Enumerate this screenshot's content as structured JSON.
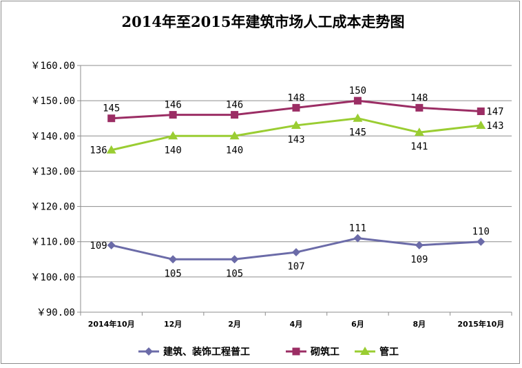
{
  "chart_data": {
    "type": "line",
    "title": "2014年至2015年建筑市场人工成本走势图",
    "categories": [
      "2014年10月",
      "12月",
      "2月",
      "4月",
      "6月",
      "8月",
      "2015年10月"
    ],
    "y_ticks": [
      "￥90.00",
      "￥100.00",
      "￥110.00",
      "￥120.00",
      "￥130.00",
      "￥140.00",
      "￥150.00",
      "￥160.00"
    ],
    "ylim": [
      90,
      160
    ],
    "grid": true,
    "legend_position": "bottom",
    "series": [
      {
        "name": "建筑、装饰工程普工",
        "values": [
          109,
          105,
          105,
          107,
          111,
          109,
          110
        ],
        "labels": [
          "109",
          "105",
          "105",
          "107",
          "111",
          "109",
          "110"
        ],
        "color": "#6b6ba8",
        "marker": "diamond"
      },
      {
        "name": "砌筑工",
        "values": [
          145,
          146,
          146,
          148,
          150,
          148,
          147
        ],
        "labels": [
          "145",
          "146",
          "146",
          "148",
          "150",
          "148",
          "147"
        ],
        "color": "#9b2d64",
        "marker": "square"
      },
      {
        "name": "管工",
        "values": [
          136,
          140,
          140,
          143,
          145,
          141,
          143
        ],
        "labels": [
          "136",
          "140",
          "140",
          "143",
          "145",
          "141",
          "143"
        ],
        "color": "#9acd32",
        "marker": "triangle"
      }
    ]
  }
}
